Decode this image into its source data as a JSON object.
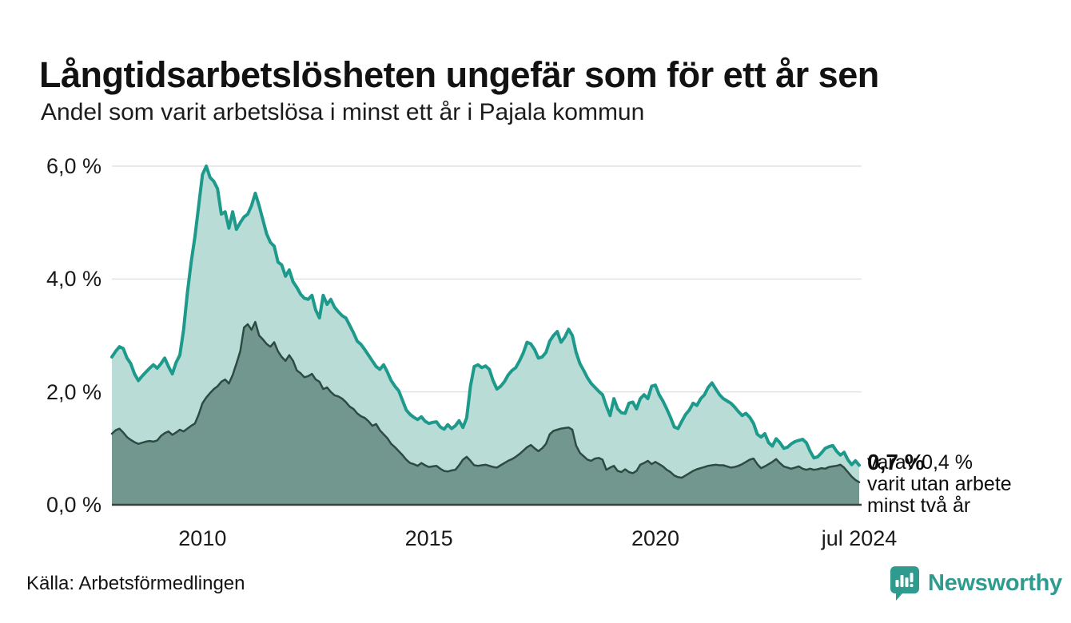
{
  "chart_data": {
    "type": "area",
    "title": "Långtidsarbetslösheten ungefär som för ett år sen",
    "subtitle": "Andel som varit arbetslösa i minst ett år i Pajala kommun",
    "x_range": [
      2008.0,
      2024.5
    ],
    "y_range": [
      0,
      6
    ],
    "grid": true,
    "grid_color": "#e2e2e2",
    "axis_line_color": "#3d3d3d",
    "x_ticks": [
      {
        "label": "2010",
        "year": 2010
      },
      {
        "label": "2015",
        "year": 2015
      },
      {
        "label": "2020",
        "year": 2020
      },
      {
        "label": "jul 2024",
        "year": 2024.5
      }
    ],
    "y_ticks": [
      {
        "label": "0,0 %",
        "value": 0
      },
      {
        "label": "2,0 %",
        "value": 2
      },
      {
        "label": "4,0 %",
        "value": 4
      },
      {
        "label": "6,0 %",
        "value": 6
      }
    ],
    "points_per_year": 12,
    "series": [
      {
        "id": "unemployed-min-one-year",
        "name": "minst ett år",
        "color": "#1d9a8b",
        "fill": "#b9ddd6",
        "stroke_width": 4,
        "values": [
          2.62,
          2.72,
          2.8,
          2.77,
          2.6,
          2.5,
          2.32,
          2.2,
          2.28,
          2.35,
          2.42,
          2.48,
          2.42,
          2.5,
          2.6,
          2.45,
          2.32,
          2.52,
          2.65,
          3.1,
          3.75,
          4.3,
          4.75,
          5.3,
          5.85,
          6.0,
          5.8,
          5.73,
          5.6,
          5.15,
          5.19,
          4.9,
          5.19,
          4.88,
          5.0,
          5.1,
          5.15,
          5.3,
          5.52,
          5.3,
          5.05,
          4.8,
          4.65,
          4.58,
          4.3,
          4.25,
          4.05,
          4.16,
          3.95,
          3.85,
          3.73,
          3.66,
          3.64,
          3.71,
          3.45,
          3.31,
          3.71,
          3.55,
          3.64,
          3.5,
          3.42,
          3.35,
          3.31,
          3.18,
          3.05,
          2.9,
          2.84,
          2.75,
          2.65,
          2.55,
          2.45,
          2.4,
          2.48,
          2.35,
          2.2,
          2.1,
          2.02,
          1.85,
          1.68,
          1.6,
          1.55,
          1.51,
          1.56,
          1.48,
          1.44,
          1.46,
          1.47,
          1.38,
          1.34,
          1.42,
          1.35,
          1.4,
          1.49,
          1.37,
          1.54,
          2.1,
          2.45,
          2.48,
          2.43,
          2.46,
          2.4,
          2.2,
          2.05,
          2.1,
          2.18,
          2.3,
          2.38,
          2.43,
          2.55,
          2.69,
          2.88,
          2.85,
          2.75,
          2.6,
          2.62,
          2.7,
          2.9,
          3.0,
          3.07,
          2.88,
          2.97,
          3.11,
          3.0,
          2.7,
          2.5,
          2.38,
          2.25,
          2.15,
          2.08,
          2.01,
          1.95,
          1.75,
          1.58,
          1.88,
          1.7,
          1.63,
          1.62,
          1.8,
          1.82,
          1.7,
          1.88,
          1.95,
          1.88,
          2.1,
          2.12,
          1.95,
          1.84,
          1.7,
          1.55,
          1.38,
          1.35,
          1.48,
          1.6,
          1.68,
          1.8,
          1.76,
          1.88,
          1.95,
          2.08,
          2.16,
          2.05,
          1.95,
          1.88,
          1.84,
          1.8,
          1.73,
          1.65,
          1.58,
          1.62,
          1.55,
          1.44,
          1.25,
          1.2,
          1.26,
          1.1,
          1.04,
          1.17,
          1.1,
          1.0,
          1.02,
          1.08,
          1.12,
          1.14,
          1.16,
          1.1,
          0.95,
          0.83,
          0.85,
          0.92,
          1.0,
          1.03,
          1.05,
          0.95,
          0.88,
          0.93,
          0.8,
          0.71,
          0.78,
          0.7
        ]
      },
      {
        "id": "unemployed-min-two-years",
        "name": "minst två år",
        "color": "#2d4a43",
        "fill": "#72978e",
        "stroke_width": 2.5,
        "values": [
          1.26,
          1.32,
          1.35,
          1.28,
          1.2,
          1.15,
          1.11,
          1.08,
          1.1,
          1.12,
          1.13,
          1.12,
          1.14,
          1.22,
          1.27,
          1.3,
          1.24,
          1.28,
          1.33,
          1.3,
          1.35,
          1.4,
          1.44,
          1.6,
          1.8,
          1.9,
          1.98,
          2.05,
          2.1,
          2.18,
          2.22,
          2.15,
          2.3,
          2.5,
          2.72,
          3.14,
          3.2,
          3.1,
          3.24,
          3.0,
          2.93,
          2.85,
          2.8,
          2.88,
          2.72,
          2.62,
          2.55,
          2.65,
          2.55,
          2.38,
          2.33,
          2.26,
          2.28,
          2.32,
          2.22,
          2.18,
          2.05,
          2.08,
          2.0,
          1.94,
          1.92,
          1.88,
          1.82,
          1.74,
          1.7,
          1.62,
          1.57,
          1.54,
          1.48,
          1.4,
          1.43,
          1.32,
          1.25,
          1.18,
          1.08,
          1.02,
          0.95,
          0.88,
          0.8,
          0.74,
          0.72,
          0.69,
          0.74,
          0.7,
          0.67,
          0.68,
          0.69,
          0.64,
          0.6,
          0.59,
          0.61,
          0.62,
          0.7,
          0.8,
          0.85,
          0.78,
          0.7,
          0.69,
          0.7,
          0.71,
          0.69,
          0.67,
          0.66,
          0.7,
          0.74,
          0.78,
          0.81,
          0.85,
          0.9,
          0.96,
          1.02,
          1.06,
          1.0,
          0.95,
          1.0,
          1.08,
          1.25,
          1.31,
          1.33,
          1.35,
          1.36,
          1.37,
          1.33,
          1.05,
          0.92,
          0.86,
          0.8,
          0.78,
          0.82,
          0.83,
          0.8,
          0.62,
          0.66,
          0.69,
          0.6,
          0.58,
          0.63,
          0.58,
          0.56,
          0.6,
          0.71,
          0.74,
          0.78,
          0.72,
          0.76,
          0.72,
          0.68,
          0.62,
          0.58,
          0.52,
          0.49,
          0.48,
          0.52,
          0.56,
          0.6,
          0.63,
          0.65,
          0.67,
          0.69,
          0.7,
          0.71,
          0.7,
          0.7,
          0.68,
          0.66,
          0.67,
          0.69,
          0.72,
          0.76,
          0.8,
          0.82,
          0.72,
          0.65,
          0.68,
          0.72,
          0.76,
          0.81,
          0.74,
          0.68,
          0.66,
          0.64,
          0.66,
          0.68,
          0.64,
          0.62,
          0.64,
          0.62,
          0.63,
          0.65,
          0.64,
          0.67,
          0.68,
          0.69,
          0.71,
          0.66,
          0.58,
          0.5,
          0.44,
          0.4
        ]
      }
    ],
    "annotation": {
      "value_label": "0,7 %",
      "note_lines": [
        "varav 0,4 %",
        "varit utan arbete",
        "minst två år"
      ]
    }
  },
  "source": {
    "label": "Källa: Arbetsförmedlingen"
  },
  "branding": {
    "name": "Newsworthy",
    "color": "#2f9b8e",
    "icon": "speech-bubble-bar-chart-icon"
  }
}
